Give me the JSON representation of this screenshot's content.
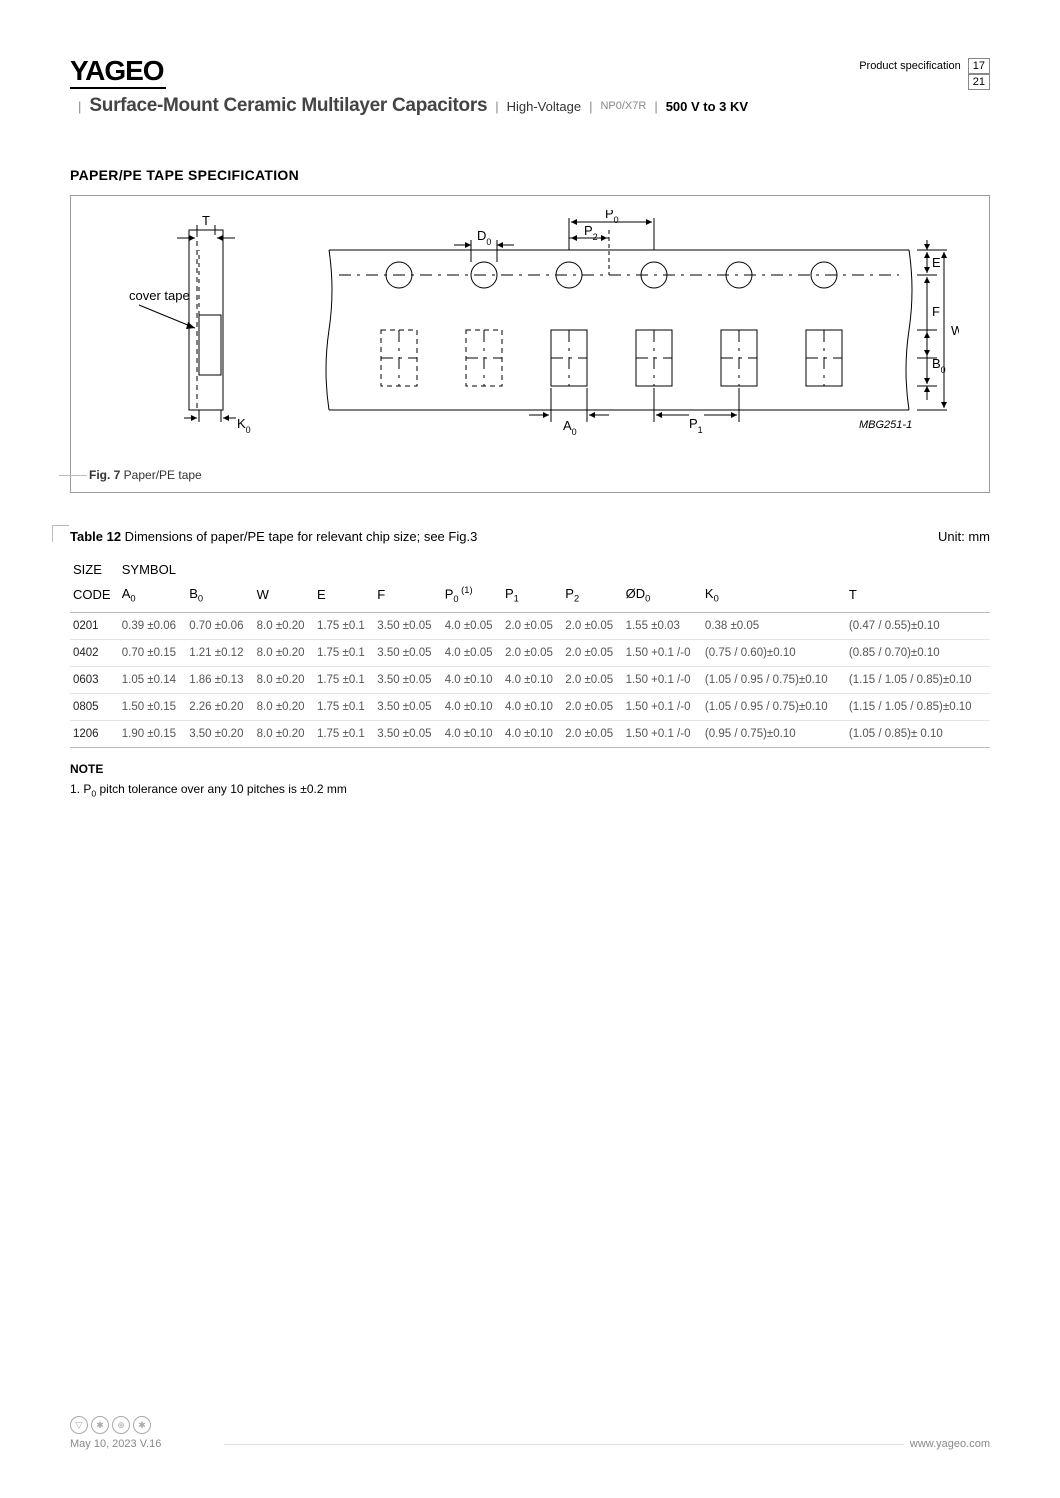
{
  "header": {
    "logo": "YAGEO",
    "spec_label": "Product specification",
    "page_current": "17",
    "page_total": "21",
    "title_main": "Surface-Mount Ceramic Multilayer Capacitors",
    "title_sub1": "High-Voltage",
    "title_sub2": "NP0/X7R",
    "title_sub3": "500 V to 3 KV"
  },
  "section": {
    "title": "PAPER/PE TAPE SPECIFICATION",
    "fig_caption_bold": "Fig. 7",
    "fig_caption_rest": "  Paper/PE tape",
    "fig_labels": {
      "cover_tape": "cover tape",
      "T": "T",
      "D0": "D",
      "P0": "P",
      "P2": "P",
      "E": "E",
      "F": "F",
      "W": "W",
      "B0": "B",
      "K0": "K",
      "A0": "A",
      "P1": "P",
      "ref": "MBG251-1"
    }
  },
  "table": {
    "caption_bold": "Table 12",
    "caption_rest": " Dimensions of paper/PE tape for relevant chip size; see Fig.3",
    "unit": "Unit: mm",
    "head_size": "SIZE",
    "head_symbol": "SYMBOL",
    "head_code": "CODE",
    "cols": [
      "A",
      "B",
      "W",
      "E",
      "F",
      "P",
      "P",
      "P",
      "ØD",
      "K",
      "T"
    ],
    "col_sub": [
      "0",
      "0",
      "",
      "",
      "",
      "0",
      "1",
      "2",
      "0",
      "0",
      ""
    ],
    "p0_note": " (1)",
    "rows": [
      {
        "code": "0201",
        "A0": "0.39 ±0.06",
        "B0": "0.70 ±0.06",
        "W": "8.0 ±0.20",
        "E": "1.75 ±0.1",
        "F": "3.50 ±0.05",
        "P0": "4.0 ±0.05",
        "P1": "2.0 ±0.05",
        "P2": "2.0 ±0.05",
        "D0": "1.55 ±0.03",
        "K0": "0.38 ±0.05",
        "T": "(0.47 / 0.55)±0.10"
      },
      {
        "code": "0402",
        "A0": "0.70 ±0.15",
        "B0": "1.21 ±0.12",
        "W": "8.0 ±0.20",
        "E": "1.75 ±0.1",
        "F": "3.50 ±0.05",
        "P0": "4.0 ±0.05",
        "P1": "2.0 ±0.05",
        "P2": "2.0 ±0.05",
        "D0": "1.50 +0.1 /-0",
        "K0": "(0.75 / 0.60)±0.10",
        "T": "(0.85 / 0.70)±0.10"
      },
      {
        "code": "0603",
        "A0": "1.05 ±0.14",
        "B0": "1.86 ±0.13",
        "W": "8.0 ±0.20",
        "E": "1.75 ±0.1",
        "F": "3.50 ±0.05",
        "P0": "4.0 ±0.10",
        "P1": "4.0 ±0.10",
        "P2": "2.0 ±0.05",
        "D0": "1.50 +0.1 /-0",
        "K0": "(1.05 / 0.95 / 0.75)±0.10",
        "T": "(1.15 / 1.05 / 0.85)±0.10"
      },
      {
        "code": "0805",
        "A0": "1.50 ±0.15",
        "B0": "2.26 ±0.20",
        "W": "8.0 ±0.20",
        "E": "1.75 ±0.1",
        "F": "3.50 ±0.05",
        "P0": "4.0 ±0.10",
        "P1": "4.0 ±0.10",
        "P2": "2.0 ±0.05",
        "D0": "1.50 +0.1 /-0",
        "K0": "(1.05 / 0.95 / 0.75)±0.10",
        "T": "(1.15 / 1.05 / 0.85)±0.10"
      },
      {
        "code": "1206",
        "A0": "1.90 ±0.15",
        "B0": "3.50 ±0.20",
        "W": "8.0 ±0.20",
        "E": "1.75 ±0.1",
        "F": "3.50 ±0.05",
        "P0": "4.0 ±0.10",
        "P1": "4.0 ±0.10",
        "P2": "2.0 ±0.05",
        "D0": "1.50 +0.1 /-0",
        "K0": "(0.95 / 0.75)±0.10",
        "T": "(1.05 / 0.85)± 0.10"
      }
    ]
  },
  "note": {
    "title": "NOTE",
    "text_pre": "1.   P",
    "text_sub": "0",
    "text_post": " pitch tolerance over any 10 pitches is ±0.2 mm"
  },
  "footer": {
    "date": "May 10, 2023   V.16",
    "url": "www.yageo.com"
  },
  "diagram": {
    "stroke": "#000",
    "stroke_width": 1,
    "font_size": 13
  }
}
